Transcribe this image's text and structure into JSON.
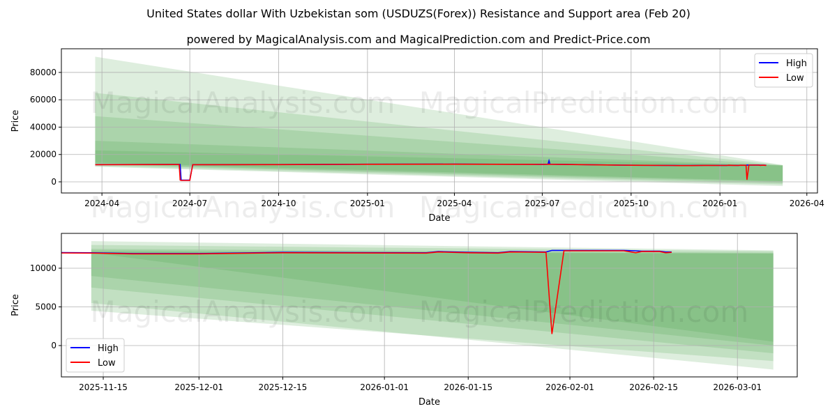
{
  "title": "United States dollar With Uzbekistan som (USDUZS(Forex)) Resistance and Support area (Feb 20)",
  "subtitle": "powered by MagicalAnalysis.com and MagicalPrediction.com and Predict-Price.com",
  "watermarks": [
    "MagicalAnalysis.com",
    "MagicalPrediction.com"
  ],
  "colors": {
    "high": "#0000ff",
    "low": "#ff0000",
    "band": "#3a9a3a",
    "grid": "#b0b0b0"
  },
  "chart_data": [
    {
      "type": "line",
      "xlabel": "Date",
      "ylabel": "Price",
      "xlim": [
        "2024-02-19",
        "2026-04-12"
      ],
      "ylim": [
        -8150,
        97300
      ],
      "xticks": [
        "2024-04",
        "2024-07",
        "2024-10",
        "2025-01",
        "2025-04",
        "2025-07",
        "2025-10",
        "2026-01",
        "2026-04"
      ],
      "yticks": [
        0,
        20000,
        40000,
        60000,
        80000
      ],
      "ytick_labels": [
        "0",
        "20000",
        "40000",
        "60000",
        "80000"
      ],
      "legend": {
        "placement": "top-right",
        "entries": [
          "High",
          "Low"
        ]
      },
      "grid": true,
      "bands": {
        "start": "2024-03-25",
        "end": "2026-03-07",
        "ranges": [
          {
            "start": [
              91500,
              11000
            ],
            "end": [
              12300,
              -3100
            ]
          },
          {
            "start": [
              65000,
              11500
            ],
            "end": [
              12200,
              -2000
            ]
          },
          {
            "start": [
              48000,
              12500
            ],
            "end": [
              12000,
              -1000
            ]
          },
          {
            "start": [
              30000,
              13000
            ],
            "end": [
              11900,
              0
            ]
          },
          {
            "start": [
              23000,
              14000
            ],
            "end": [
              12000,
              500
            ]
          }
        ]
      }
    },
    {
      "type": "line",
      "xlabel": "Date",
      "ylabel": "Price",
      "xlim": [
        "2025-11-08",
        "2026-03-11"
      ],
      "ylim": [
        -4050,
        14500
      ],
      "xticks": [
        "2025-11-15",
        "2025-12-01",
        "2025-12-15",
        "2026-01-01",
        "2026-01-15",
        "2026-02-01",
        "2026-02-15",
        "2026-03-01"
      ],
      "yticks": [
        0,
        5000,
        10000
      ],
      "ytick_labels": [
        "0",
        "5000",
        "10000"
      ],
      "legend": {
        "placement": "bottom-left",
        "entries": [
          "High",
          "Low"
        ]
      },
      "grid": true,
      "bands": {
        "start": "2025-11-13",
        "end": "2026-03-07",
        "ranges": [
          {
            "start": [
              13500,
              5500
            ],
            "end": [
              12300,
              -3100
            ]
          },
          {
            "start": [
              13000,
              4500
            ],
            "end": [
              12200,
              -2000
            ]
          },
          {
            "start": [
              12500,
              7500
            ],
            "end": [
              12000,
              -1000
            ]
          },
          {
            "start": [
              12300,
              9000
            ],
            "end": [
              11900,
              0
            ]
          },
          {
            "start": [
              12100,
              12000
            ],
            "end": [
              11900,
              500
            ]
          }
        ]
      }
    }
  ],
  "series": {
    "columns": [
      "date",
      "high",
      "low"
    ],
    "points": [
      [
        "2024-03-25",
        12600,
        12550
      ],
      [
        "2024-05-01",
        12650,
        12600
      ],
      [
        "2024-06-15",
        12700,
        12650
      ],
      [
        "2024-06-20",
        12700,
        12650
      ],
      [
        "2024-06-21",
        12700,
        1300
      ],
      [
        "2024-06-22",
        1200,
        1000
      ],
      [
        "2024-07-01",
        1200,
        1000
      ],
      [
        "2024-07-04",
        12600,
        12550
      ],
      [
        "2024-10-01",
        12650,
        12600
      ],
      [
        "2025-01-01",
        12900,
        12850
      ],
      [
        "2025-04-01",
        12950,
        12900
      ],
      [
        "2025-07-01",
        12800,
        12750
      ],
      [
        "2025-07-07",
        12900,
        12850
      ],
      [
        "2025-07-08",
        15500,
        12900
      ],
      [
        "2025-07-09",
        12900,
        12850
      ],
      [
        "2025-10-01",
        12150,
        12100
      ],
      [
        "2025-11-13",
        12000,
        11950
      ],
      [
        "2025-11-20",
        11900,
        11850
      ],
      [
        "2025-12-01",
        11900,
        11850
      ],
      [
        "2025-12-15",
        12050,
        12000
      ],
      [
        "2026-01-08",
        12000,
        11950
      ],
      [
        "2026-01-10",
        12150,
        12100
      ],
      [
        "2026-01-15",
        12050,
        12000
      ],
      [
        "2026-01-20",
        12000,
        11950
      ],
      [
        "2026-01-22",
        12150,
        12100
      ],
      [
        "2026-01-28",
        12100,
        12050
      ],
      [
        "2026-01-29",
        12300,
        1500
      ],
      [
        "2026-01-31",
        12300,
        12250
      ],
      [
        "2026-02-10",
        12300,
        12250
      ],
      [
        "2026-02-12",
        12250,
        12000
      ],
      [
        "2026-02-13",
        12200,
        12150
      ],
      [
        "2026-02-16",
        12200,
        12150
      ],
      [
        "2026-02-17",
        12100,
        12000
      ],
      [
        "2026-02-18",
        12100,
        12050
      ]
    ]
  }
}
